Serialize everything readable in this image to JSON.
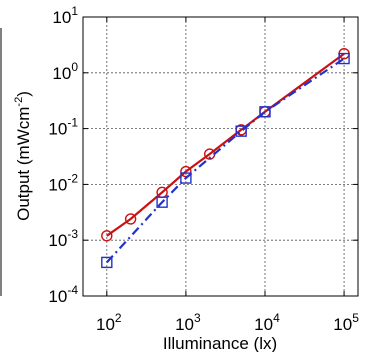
{
  "chart_data": {
    "type": "line",
    "xlabel": "Illuminance (lx)",
    "ylabel": {
      "prefix": "Output (mWcm",
      "exponent": "-2",
      "suffix": ")"
    },
    "xscale": "log",
    "yscale": "log",
    "xlim": [
      50,
      150000
    ],
    "ylim": [
      0.0001,
      10
    ],
    "grid": true,
    "x_ticks": [
      {
        "value": 100,
        "base": "10",
        "exp": "2"
      },
      {
        "value": 1000,
        "base": "10",
        "exp": "3"
      },
      {
        "value": 10000,
        "base": "10",
        "exp": "4"
      },
      {
        "value": 100000,
        "base": "10",
        "exp": "5"
      }
    ],
    "y_ticks": [
      {
        "value": 0.0001,
        "base": "10",
        "exp": "-4"
      },
      {
        "value": 0.001,
        "base": "10",
        "exp": "-3"
      },
      {
        "value": 0.01,
        "base": "10",
        "exp": "-2"
      },
      {
        "value": 0.1,
        "base": "10",
        "exp": "-1"
      },
      {
        "value": 1,
        "base": "10",
        "exp": "0"
      },
      {
        "value": 10,
        "base": "10",
        "exp": "1"
      }
    ],
    "series": [
      {
        "color": "#cc1111",
        "marker": "circle",
        "linestyle": "solid",
        "x": [
          100,
          200,
          500,
          1000,
          2000,
          5000,
          10000,
          100000
        ],
        "y": [
          0.0012,
          0.0024,
          0.0072,
          0.017,
          0.035,
          0.095,
          0.2,
          2.2
        ]
      },
      {
        "color": "#2233cc",
        "marker": "square",
        "linestyle": "dashdot",
        "x": [
          100,
          500,
          1000,
          5000,
          10000,
          100000
        ],
        "y": [
          0.0004,
          0.0048,
          0.013,
          0.09,
          0.2,
          1.8
        ]
      }
    ]
  }
}
